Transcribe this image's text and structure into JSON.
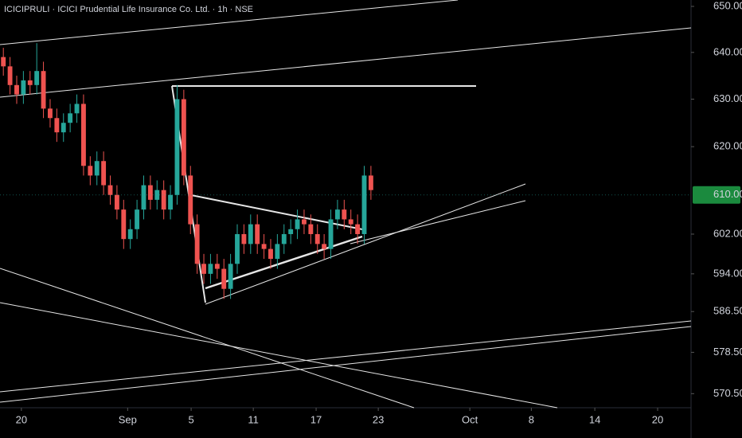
{
  "chart_data": {
    "type": "candlestick",
    "title": "ICICIPRULI · ICICI Prudential Life Insurance Co. Ltd. · 1h · NSE",
    "open": [
      639,
      637,
      633,
      631,
      634,
      633,
      636,
      628,
      626,
      623,
      625,
      627,
      629,
      616,
      614,
      617,
      612,
      610,
      607,
      601,
      603,
      607,
      612,
      609,
      611,
      607,
      610,
      630,
      614,
      604,
      596,
      594,
      596,
      595,
      591,
      596,
      602,
      600,
      604,
      600,
      599,
      597,
      600,
      602,
      603,
      605,
      604,
      602,
      600,
      599,
      605,
      607,
      605,
      604,
      602,
      614
    ],
    "high": [
      641,
      639,
      635,
      636,
      636,
      642,
      638,
      630,
      628,
      627,
      629,
      631,
      631,
      618,
      619,
      619,
      614,
      612,
      609,
      605,
      609,
      614,
      614,
      613,
      613,
      612,
      633,
      632,
      616,
      606,
      598,
      598,
      598,
      597,
      598,
      604,
      604,
      606,
      606,
      602,
      601,
      602,
      604,
      605,
      607,
      607,
      606,
      604,
      602,
      607,
      609,
      609,
      607,
      606,
      616,
      616
    ],
    "low": [
      635,
      631,
      629,
      629,
      631,
      631,
      626,
      624,
      621,
      621,
      623,
      625,
      614,
      612,
      612,
      610,
      608,
      605,
      599,
      599,
      601,
      605,
      607,
      607,
      605,
      605,
      608,
      612,
      602,
      594,
      592,
      592,
      593,
      589,
      589,
      594,
      598,
      598,
      598,
      597,
      595,
      595,
      598,
      600,
      601,
      602,
      600,
      598,
      597,
      597,
      603,
      603,
      602,
      600,
      600,
      609
    ],
    "close": [
      637,
      633,
      631,
      634,
      633,
      636,
      628,
      626,
      623,
      625,
      627,
      629,
      616,
      614,
      617,
      612,
      610,
      607,
      601,
      603,
      607,
      612,
      609,
      611,
      607,
      610,
      630,
      614,
      604,
      596,
      594,
      596,
      595,
      591,
      596,
      602,
      600,
      604,
      600,
      599,
      597,
      600,
      602,
      603,
      605,
      604,
      602,
      600,
      599,
      605,
      607,
      605,
      604,
      602,
      614,
      611
    ],
    "up_color": "#26a69a",
    "down_color": "#ef5350",
    "log_scale": true,
    "ylim": [
      567.8,
      651.4
    ],
    "yticks": [
      {
        "value": 650,
        "label": "650.00"
      },
      {
        "value": 640,
        "label": "640.00"
      },
      {
        "value": 630,
        "label": "630.00"
      },
      {
        "value": 620,
        "label": "620.00"
      },
      {
        "value": 602,
        "label": "602.00"
      },
      {
        "value": 594,
        "label": "594.00"
      },
      {
        "value": 586.5,
        "label": "586.50"
      },
      {
        "value": 578.5,
        "label": "578.50"
      },
      {
        "value": 570.5,
        "label": "570.50"
      }
    ],
    "last_price": {
      "value": 610,
      "label": "610.00"
    },
    "xlim": [
      -0.5,
      102.9
    ],
    "xticks": [
      {
        "value": 2.7,
        "label": "20"
      },
      {
        "value": 18.6,
        "label": "Sep"
      },
      {
        "value": 28.1,
        "label": "5"
      },
      {
        "value": 37.4,
        "label": "11"
      },
      {
        "value": 46.8,
        "label": "17"
      },
      {
        "value": 56.1,
        "label": "23"
      },
      {
        "value": 69.8,
        "label": "Oct"
      },
      {
        "value": 79.0,
        "label": "8"
      },
      {
        "value": 88.5,
        "label": "14"
      },
      {
        "value": 97.9,
        "label": "20"
      }
    ]
  }
}
